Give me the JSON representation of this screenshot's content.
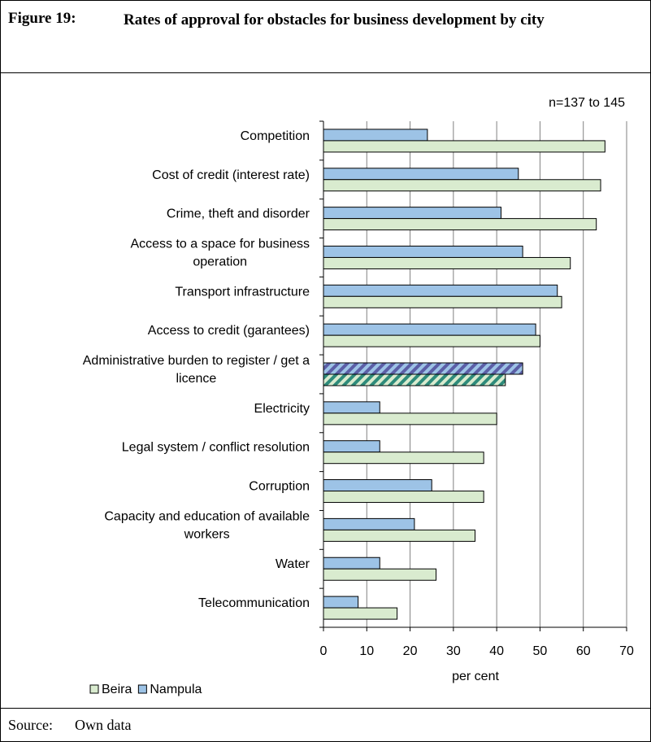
{
  "figure": {
    "number": "Figure 19:",
    "title": "Rates of approval for obstacles for business development by city",
    "source_label": "Source:",
    "source_text": "Own data"
  },
  "chart_data": {
    "type": "bar",
    "orientation": "horizontal",
    "annotation": "n=137 to 145",
    "xlabel": "per cent",
    "xlim": [
      0,
      70
    ],
    "xticks": [
      0,
      10,
      20,
      30,
      40,
      50,
      60,
      70
    ],
    "grid": "vertical",
    "legend_position": "bottom-left",
    "categories": [
      [
        "Competition"
      ],
      [
        "Cost of credit (interest rate)"
      ],
      [
        "Crime, theft and disorder"
      ],
      [
        "Access to a space for business",
        "operation"
      ],
      [
        "Transport infrastructure"
      ],
      [
        "Access to credit (garantees)"
      ],
      [
        "Administrative burden to register / get a",
        "licence"
      ],
      [
        "Electricity"
      ],
      [
        "Legal system / conflict resolution"
      ],
      [
        "Corruption"
      ],
      [
        "Capacity and education of available",
        "workers"
      ],
      [
        "Water"
      ],
      [
        "Telecommunication"
      ]
    ],
    "series": [
      {
        "name": "Nampula",
        "color": "#9DC3E6",
        "values": [
          24,
          45,
          41,
          46,
          54,
          49,
          46,
          13,
          13,
          25,
          21,
          13,
          8
        ]
      },
      {
        "name": "Beira",
        "color": "#D9EBCF",
        "values": [
          65,
          64,
          63,
          57,
          55,
          50,
          42,
          40,
          37,
          37,
          35,
          26,
          17
        ]
      }
    ],
    "legend_order": [
      "Beira",
      "Nampula"
    ],
    "hatched_category_index": 6
  }
}
